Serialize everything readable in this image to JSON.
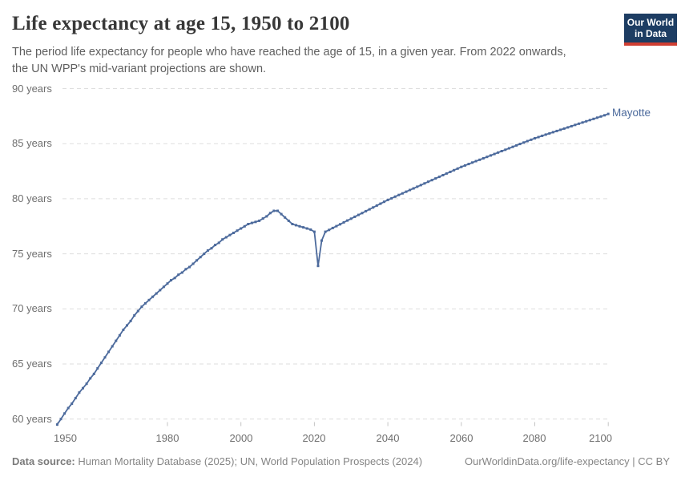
{
  "header": {
    "title": "Life expectancy at age 15, 1950 to 2100",
    "subtitle": "The period life expectancy for people who have reached the age of 15, in a given year. From 2022 onwards, the UN WPP's mid-variant projections are shown.",
    "logo": {
      "line1": "Our World",
      "line2": "in Data"
    }
  },
  "chart_data": {
    "type": "line",
    "title": "Life expectancy at age 15, 1950 to 2100",
    "entity": "Mayotte",
    "x_start_year": 1950,
    "x_end_year": 2100,
    "projection_from_year": 2022,
    "xlim": [
      1950,
      2100
    ],
    "ylim": [
      59,
      90
    ],
    "grid": "horizontal-dashed",
    "legend_position": "line-end-label",
    "line_color": "#4c6a9c",
    "y_ticks": [
      {
        "value": 60,
        "label": "60 years"
      },
      {
        "value": 65,
        "label": "65 years"
      },
      {
        "value": 70,
        "label": "70 years"
      },
      {
        "value": 75,
        "label": "75 years"
      },
      {
        "value": 80,
        "label": "80 years"
      },
      {
        "value": 85,
        "label": "85 years"
      },
      {
        "value": 90,
        "label": "90 years"
      }
    ],
    "x_ticks": [
      {
        "value": 1950,
        "label": "1950"
      },
      {
        "value": 1980,
        "label": "1980"
      },
      {
        "value": 2000,
        "label": "2000"
      },
      {
        "value": 2020,
        "label": "2020"
      },
      {
        "value": 2040,
        "label": "2040"
      },
      {
        "value": 2060,
        "label": "2060"
      },
      {
        "value": 2080,
        "label": "2080"
      },
      {
        "value": 2100,
        "label": "2100"
      }
    ],
    "values": [
      59.5,
      60.0,
      60.5,
      61.0,
      61.4,
      61.9,
      62.4,
      62.8,
      63.2,
      63.7,
      64.1,
      64.6,
      65.1,
      65.6,
      66.1,
      66.6,
      67.1,
      67.6,
      68.1,
      68.5,
      68.9,
      69.4,
      69.8,
      70.2,
      70.5,
      70.8,
      71.1,
      71.4,
      71.7,
      72.0,
      72.3,
      72.6,
      72.8,
      73.1,
      73.3,
      73.6,
      73.8,
      74.1,
      74.4,
      74.7,
      75.0,
      75.3,
      75.5,
      75.8,
      76.0,
      76.3,
      76.5,
      76.7,
      76.9,
      77.1,
      77.3,
      77.5,
      77.7,
      77.8,
      77.9,
      78.0,
      78.2,
      78.4,
      78.7,
      78.9,
      78.9,
      78.6,
      78.3,
      78.0,
      77.7,
      77.6,
      77.5,
      77.4,
      77.3,
      77.2,
      77.0,
      73.9,
      76.2,
      77.0,
      77.17,
      77.34,
      77.51,
      77.68,
      77.85,
      78.02,
      78.19,
      78.36,
      78.53,
      78.7,
      78.87,
      79.04,
      79.21,
      79.38,
      79.55,
      79.72,
      79.89,
      80.04,
      80.19,
      80.34,
      80.49,
      80.64,
      80.79,
      80.94,
      81.09,
      81.24,
      81.39,
      81.54,
      81.69,
      81.84,
      81.99,
      82.14,
      82.29,
      82.44,
      82.59,
      82.74,
      82.89,
      83.02,
      83.15,
      83.28,
      83.41,
      83.54,
      83.67,
      83.8,
      83.93,
      84.06,
      84.19,
      84.32,
      84.45,
      84.58,
      84.71,
      84.84,
      84.97,
      85.1,
      85.23,
      85.36,
      85.49,
      85.6,
      85.71,
      85.82,
      85.93,
      86.04,
      86.15,
      86.26,
      86.37,
      86.48,
      86.59,
      86.7,
      86.81,
      86.92,
      87.03,
      87.14,
      87.25,
      87.36,
      87.47,
      87.58,
      87.7
    ]
  },
  "footer": {
    "datasource_label": "Data source:",
    "datasource_text": "Human Mortality Database (2025); UN, World Population Prospects (2024)",
    "right_text": "OurWorldinData.org/life-expectancy | CC BY"
  },
  "colors": {
    "line": "#4c6a9c",
    "grid": "#dedede",
    "tick": "#c4c4c4",
    "logo_bg": "#1d3d63",
    "logo_bar": "#cf3e32"
  }
}
